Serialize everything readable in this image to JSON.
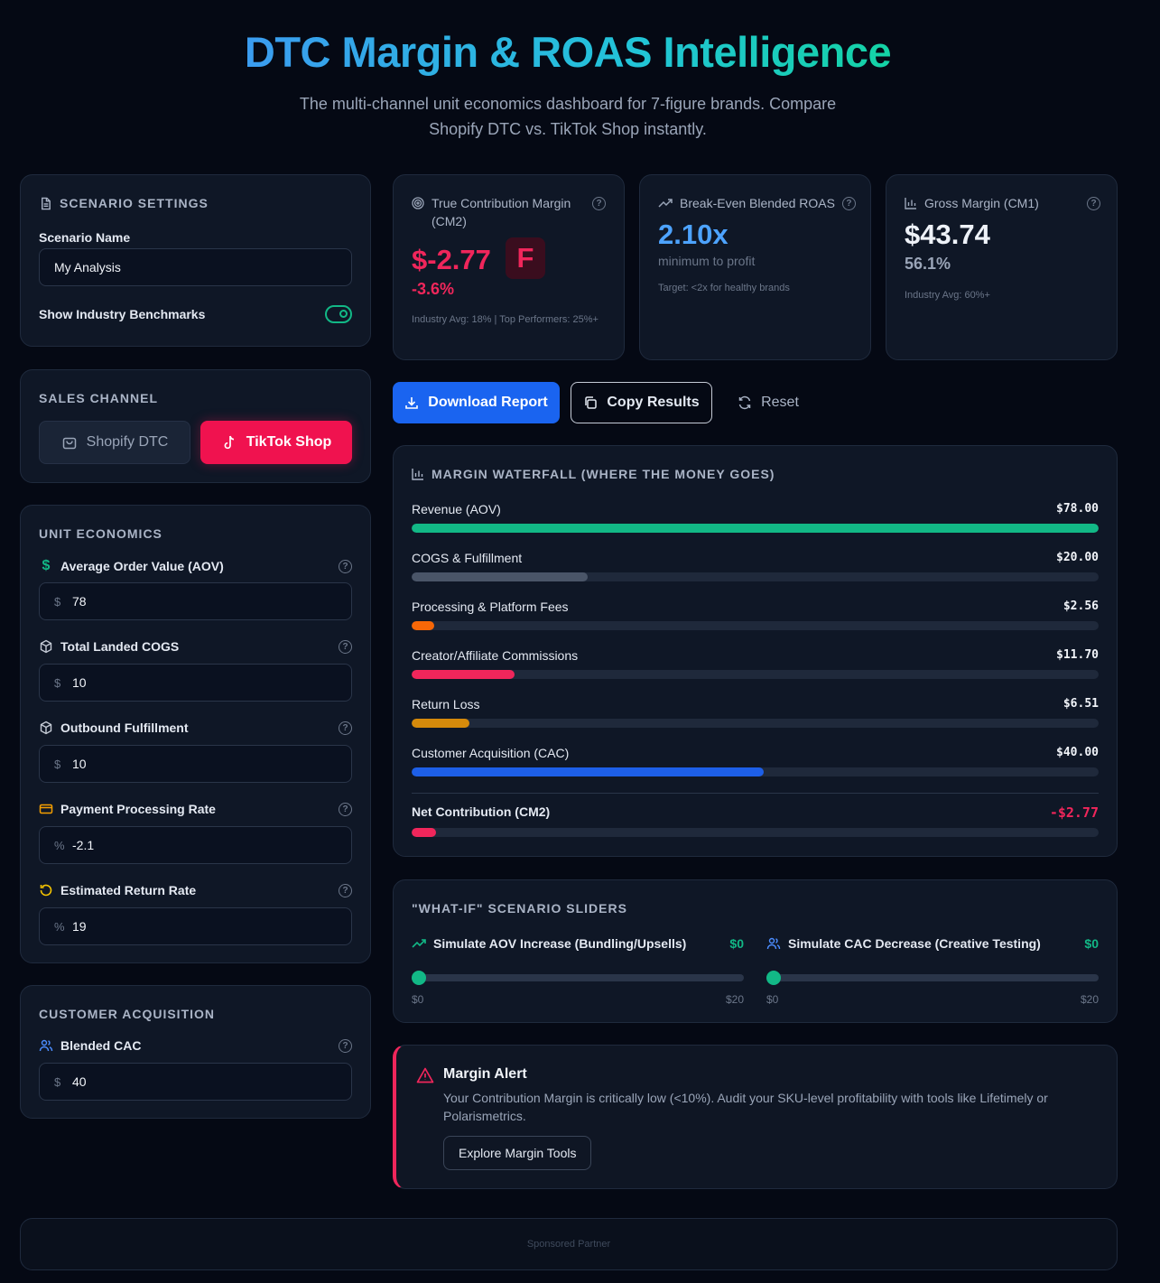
{
  "header": {
    "title": "DTC Margin & ROAS Intelligence",
    "subtitle": "The multi-channel unit economics dashboard for 7-figure brands. Compare Shopify DTC vs. TikTok Shop instantly."
  },
  "scenario": {
    "title": "SCENARIO SETTINGS",
    "name_label": "Scenario Name",
    "name_value": "My Analysis",
    "benchmarks_label": "Show Industry Benchmarks",
    "benchmarks_on": true
  },
  "channel": {
    "title": "SALES CHANNEL",
    "shopify": "Shopify DTC",
    "tiktok": "TikTok Shop",
    "selected": "TikTok Shop"
  },
  "unit_economics": {
    "title": "UNIT ECONOMICS",
    "fields": [
      {
        "label": "Average Order Value (AOV)",
        "unit": "$",
        "value": "78",
        "icon": "dollar-icon"
      },
      {
        "label": "Total Landed COGS",
        "unit": "$",
        "value": "10",
        "icon": "box-icon"
      },
      {
        "label": "Outbound Fulfillment",
        "unit": "$",
        "value": "10",
        "icon": "box-icon"
      },
      {
        "label": "Payment Processing Rate",
        "unit": "%",
        "value": "-2.1",
        "icon": "credit-card-icon"
      },
      {
        "label": "Estimated Return Rate",
        "unit": "%",
        "value": "19",
        "icon": "refresh-icon"
      }
    ]
  },
  "acquisition": {
    "title": "CUSTOMER ACQUISITION",
    "cac_label": "Blended CAC",
    "cac_unit": "$",
    "cac_value": "40"
  },
  "metrics": {
    "cm2": {
      "label": "True Contribution Margin (CM2)",
      "value": "$-2.77",
      "grade": "F",
      "percent": "-3.6%",
      "foot": "Industry Avg: 18% | Top Performers: 25%+"
    },
    "roas": {
      "label": "Break-Even Blended ROAS",
      "value": "2.10x",
      "sub": "minimum to profit",
      "foot": "Target: <2x for healthy brands"
    },
    "cm1": {
      "label": "Gross Margin (CM1)",
      "value": "$43.74",
      "percent": "56.1%",
      "foot": "Industry Avg: 60%+"
    }
  },
  "actions": {
    "download": "Download Report",
    "copy": "Copy Results",
    "reset": "Reset"
  },
  "waterfall": {
    "title": "MARGIN WATERFALL (WHERE THE MONEY GOES)",
    "rows": [
      {
        "label": "Revenue (AOV)",
        "value": "$78.00",
        "amount": 78.0,
        "color": "#12b886"
      },
      {
        "label": "COGS & Fulfillment",
        "value": "$20.00",
        "amount": 20.0,
        "color": "#4a5568"
      },
      {
        "label": "Processing & Platform Fees",
        "value": "$2.56",
        "amount": 2.56,
        "color": "#f76707"
      },
      {
        "label": "Creator/Affiliate Commissions",
        "value": "$11.70",
        "amount": 11.7,
        "color": "#f0265b"
      },
      {
        "label": "Return Loss",
        "value": "$6.51",
        "amount": 6.51,
        "color": "#d58a0b"
      },
      {
        "label": "Customer Acquisition (CAC)",
        "value": "$40.00",
        "amount": 40.0,
        "color": "#1d5fe8"
      }
    ],
    "net": {
      "label": "Net Contribution (CM2)",
      "value": "-$2.77",
      "amount": -2.77,
      "color": "#f0265b"
    }
  },
  "whatif": {
    "title": "\"WHAT-IF\" SCENARIO SLIDERS",
    "aov": {
      "label": "Simulate AOV Increase (Bundling/Upsells)",
      "value": "$0",
      "min": "$0",
      "max": "$20",
      "level": 0
    },
    "cac": {
      "label": "Simulate CAC Decrease (Creative Testing)",
      "value": "$0",
      "min": "$0",
      "max": "$20",
      "level": 0
    }
  },
  "alert": {
    "title": "Margin Alert",
    "text": "Your Contribution Margin is critically low (<10%). Audit your SKU-level profitability with tools like Lifetimely or Polarismetrics.",
    "button": "Explore Margin Tools"
  },
  "footer": {
    "sponsored": "Sponsored Partner"
  }
}
